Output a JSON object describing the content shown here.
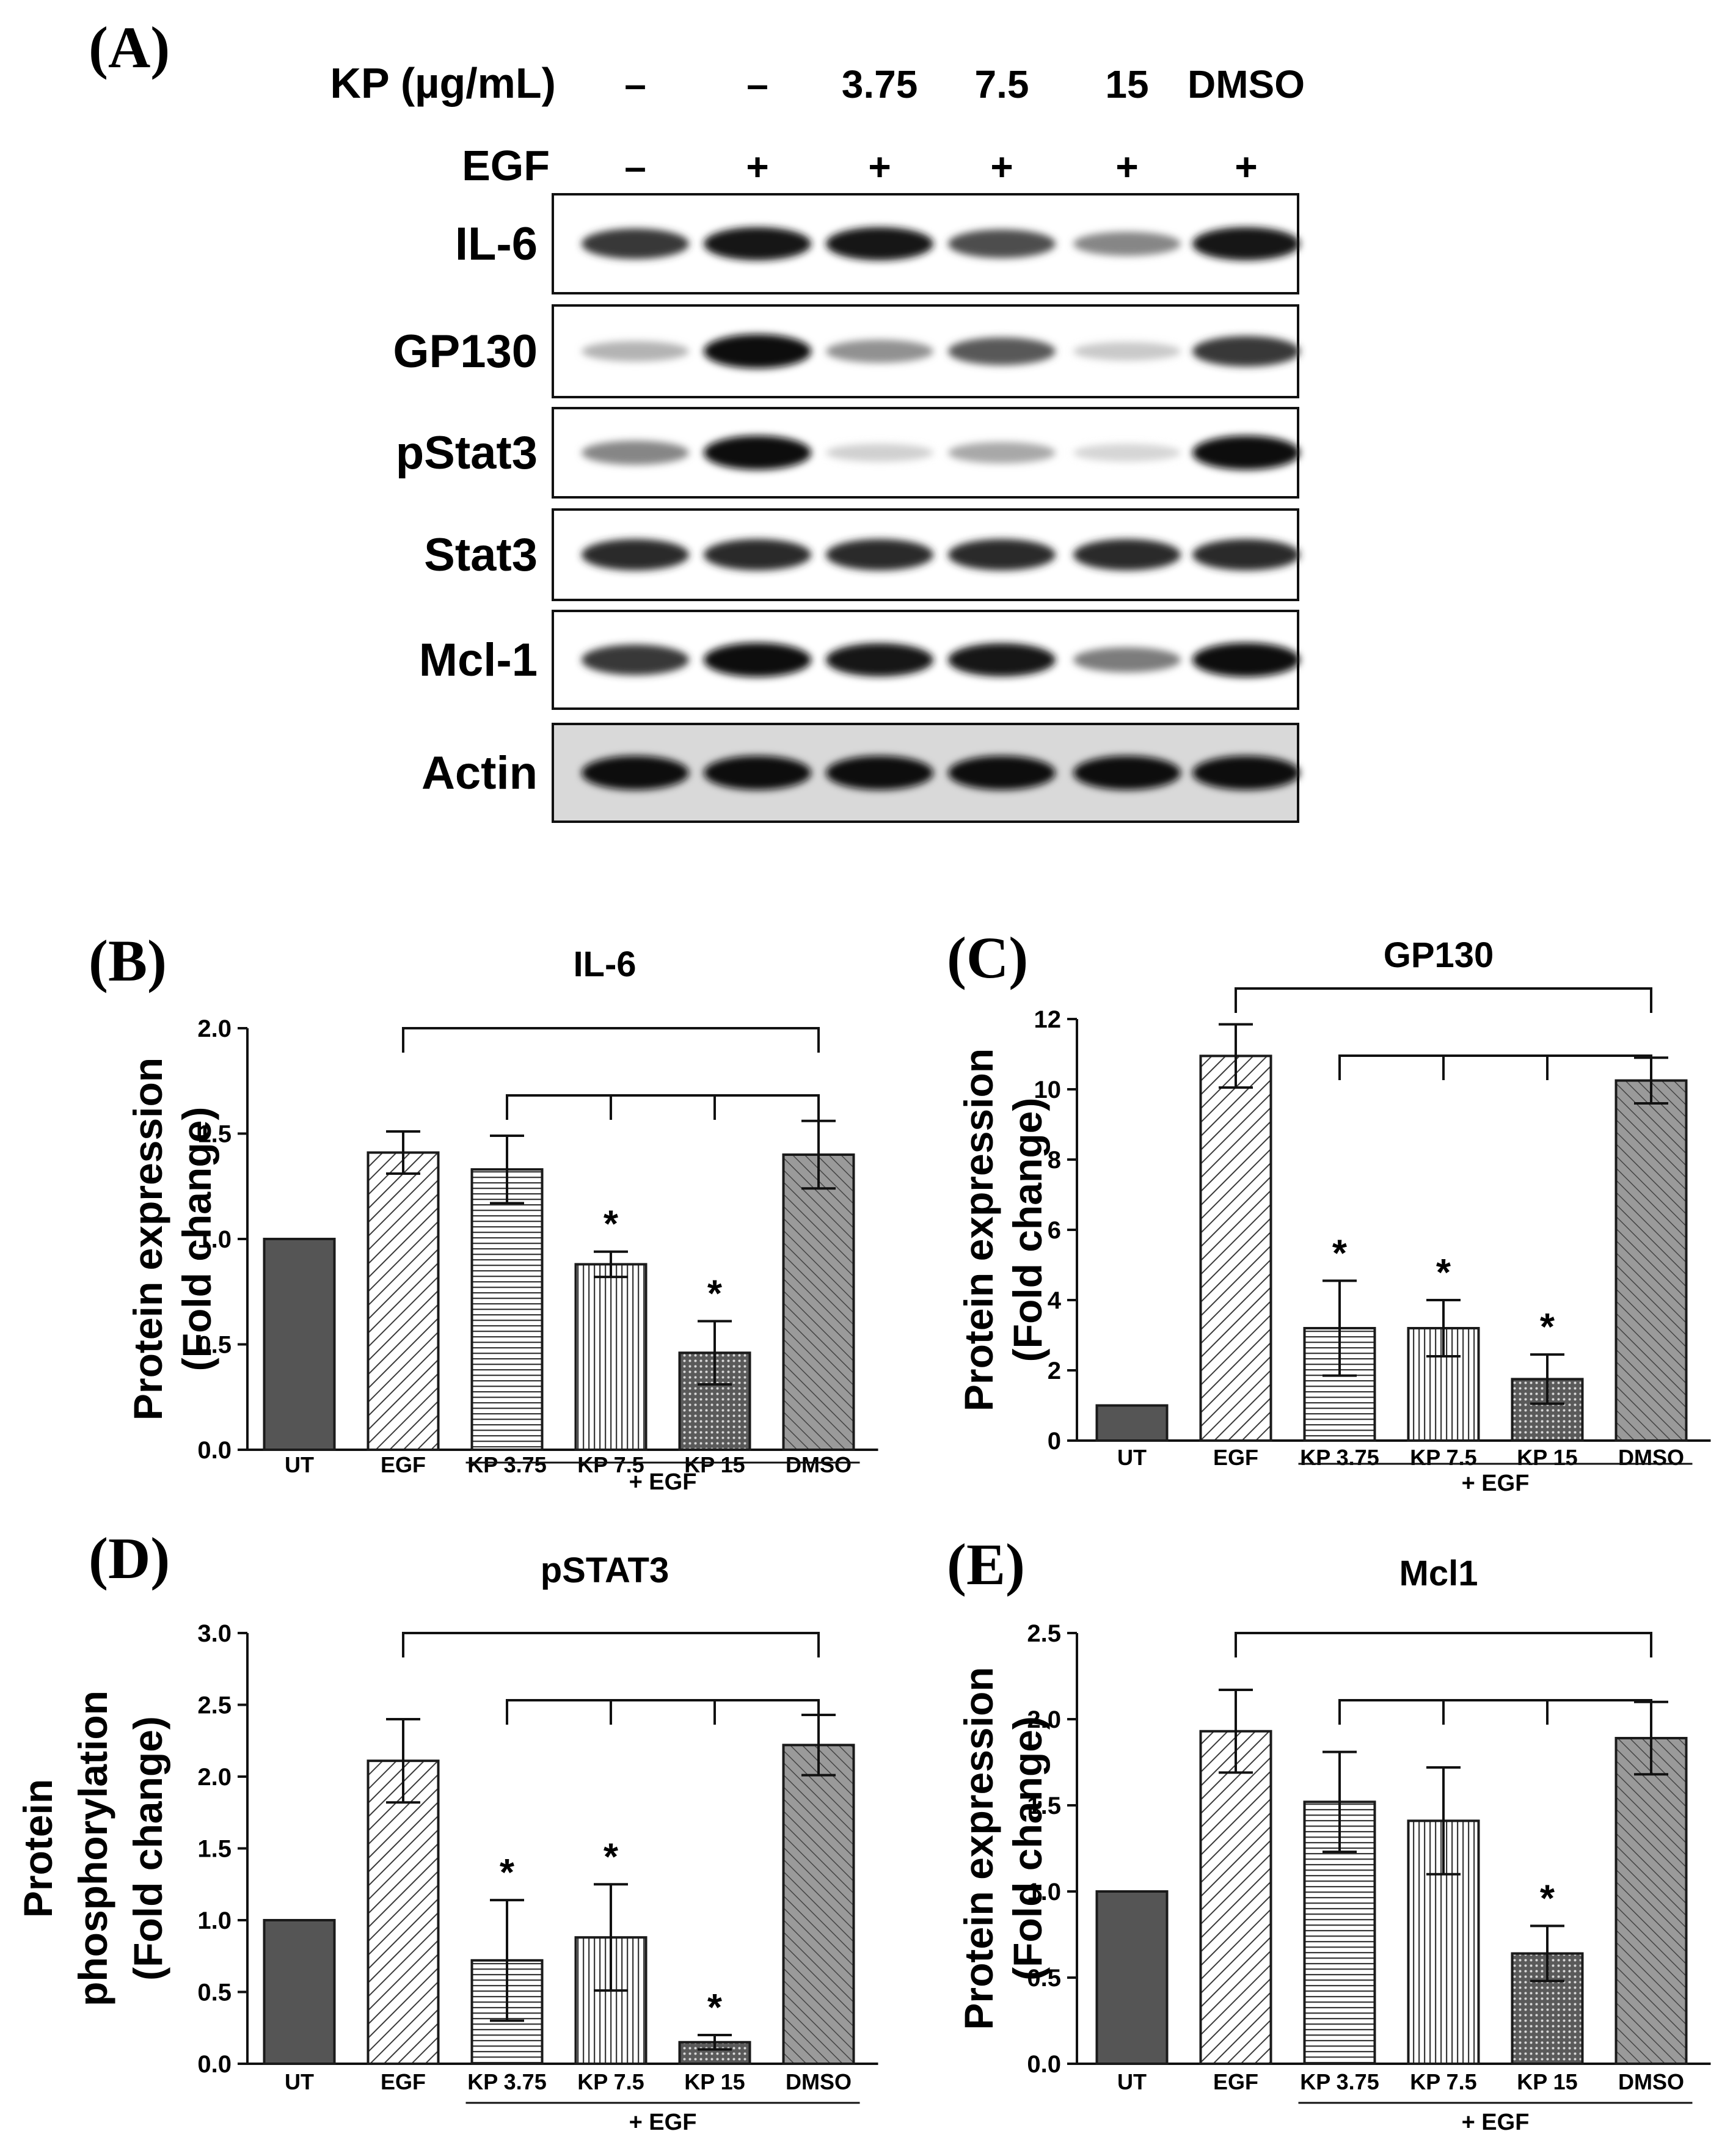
{
  "panel_a": {
    "letter": "(A)",
    "treatment_rows": [
      {
        "label": "KP (µg/mL)",
        "values": [
          "–",
          "–",
          "3.75",
          "7.5",
          "15",
          "DMSO"
        ]
      },
      {
        "label": "EGF",
        "values": [
          "–",
          "+",
          "+",
          "+",
          "+",
          "+"
        ]
      }
    ],
    "blots": [
      {
        "label": "IL-6",
        "band_intensity": [
          0.8,
          0.95,
          0.95,
          0.7,
          0.45,
          0.95
        ],
        "background": "#ffffff"
      },
      {
        "label": "GP130",
        "band_intensity": [
          0.25,
          1.0,
          0.4,
          0.65,
          0.15,
          0.8
        ],
        "background": "#ffffff"
      },
      {
        "label": "pStat3",
        "band_intensity": [
          0.45,
          1.0,
          0.12,
          0.3,
          0.1,
          1.0
        ],
        "background": "#ffffff"
      },
      {
        "label": "Stat3",
        "band_intensity": [
          0.85,
          0.85,
          0.85,
          0.85,
          0.85,
          0.85
        ],
        "background": "#ffffff"
      },
      {
        "label": "Mcl-1",
        "band_intensity": [
          0.8,
          1.0,
          0.95,
          0.95,
          0.5,
          1.0
        ],
        "background": "#ffffff"
      },
      {
        "label": "Actin",
        "band_intensity": [
          1.0,
          1.0,
          1.0,
          1.0,
          1.0,
          1.0
        ],
        "background": "#d9d9d9"
      }
    ]
  },
  "panels": [
    {
      "letter": "(B)"
    },
    {
      "letter": "(C)"
    },
    {
      "letter": "(D)"
    },
    {
      "letter": "(E)"
    }
  ],
  "colors": {
    "ut_bar": "#555555",
    "bar_outline": "#1a1a1a",
    "pattern_line": "#3a3a3a",
    "dmso_fill": "#9a9a9a"
  },
  "chart_data": [
    {
      "type": "bar",
      "title": "IL-6",
      "ylabel": [
        "Protein expression",
        "(Fold change)"
      ],
      "categories": [
        "UT",
        "EGF",
        "KP 3.75",
        "KP 7.5",
        "KP 15",
        "DMSO"
      ],
      "values": [
        1.0,
        1.41,
        1.33,
        0.88,
        0.46,
        1.4
      ],
      "errors": [
        0,
        0.1,
        0.16,
        0.06,
        0.15,
        0.16
      ],
      "significant": [
        false,
        false,
        false,
        true,
        true,
        false
      ],
      "sig_marker": "*",
      "group_label": "+ EGF",
      "ylim": [
        0,
        2.0
      ],
      "yticks": [
        "0.0",
        "0.5",
        "1.0",
        "1.5",
        "2.0"
      ],
      "ytick_values": [
        0,
        0.5,
        1.0,
        1.5,
        2.0
      ]
    },
    {
      "type": "bar",
      "title": "GP130",
      "ylabel": [
        "Protein expression",
        "(Fold change)"
      ],
      "categories": [
        "UT",
        "EGF",
        "KP 3.75",
        "KP 7.5",
        "KP 15",
        "DMSO"
      ],
      "values": [
        1.0,
        10.95,
        3.2,
        3.2,
        1.75,
        10.25
      ],
      "errors": [
        0,
        0.9,
        1.35,
        0.8,
        0.7,
        0.65
      ],
      "significant": [
        false,
        false,
        true,
        true,
        true,
        false
      ],
      "sig_marker": "*",
      "group_label": "+ EGF",
      "ylim": [
        0,
        12
      ],
      "yticks": [
        "0",
        "2",
        "4",
        "6",
        "8",
        "10",
        "12"
      ],
      "ytick_values": [
        0,
        2,
        4,
        6,
        8,
        10,
        12
      ]
    },
    {
      "type": "bar",
      "title": "pSTAT3",
      "ylabel": [
        "Protein",
        "phosphorylation",
        "(Fold change)"
      ],
      "categories": [
        "UT",
        "EGF",
        "KP 3.75",
        "KP 7.5",
        "KP 15",
        "DMSO"
      ],
      "values": [
        1.0,
        2.11,
        0.72,
        0.88,
        0.15,
        2.22
      ],
      "errors": [
        0,
        0.29,
        0.42,
        0.37,
        0.05,
        0.21
      ],
      "significant": [
        false,
        false,
        true,
        true,
        true,
        false
      ],
      "sig_marker": "*",
      "group_label": "+ EGF",
      "ylim": [
        0,
        3.0
      ],
      "yticks": [
        "0.0",
        "0.5",
        "1.0",
        "1.5",
        "2.0",
        "2.5",
        "3.0"
      ],
      "ytick_values": [
        0,
        0.5,
        1.0,
        1.5,
        2.0,
        2.5,
        3.0
      ]
    },
    {
      "type": "bar",
      "title": "Mcl1",
      "ylabel": [
        "Protein expression",
        "(Fold change)"
      ],
      "categories": [
        "UT",
        "EGF",
        "KP 3.75",
        "KP 7.5",
        "KP 15",
        "DMSO"
      ],
      "values": [
        1.0,
        1.93,
        1.52,
        1.41,
        0.64,
        1.89
      ],
      "errors": [
        0,
        0.24,
        0.29,
        0.31,
        0.16,
        0.21
      ],
      "significant": [
        false,
        false,
        false,
        false,
        true,
        false
      ],
      "sig_marker": "*",
      "group_label": "+ EGF",
      "ylim": [
        0,
        2.5
      ],
      "yticks": [
        "0.0",
        "0.5",
        "1.0",
        "1.5",
        "2.0",
        "2.5"
      ],
      "ytick_values": [
        0,
        0.5,
        1.0,
        1.5,
        2.0,
        2.5
      ]
    }
  ]
}
